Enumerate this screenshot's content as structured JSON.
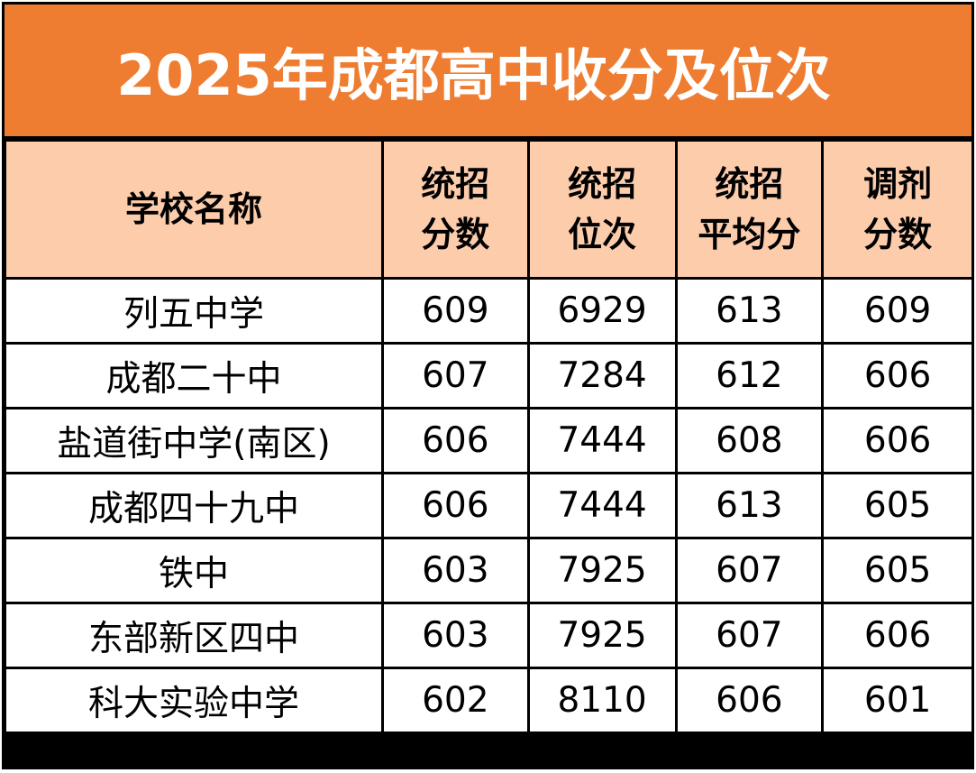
{
  "title": "2025年成都高中收分及位次",
  "columns": [
    {
      "lines": [
        "学校名称"
      ]
    },
    {
      "lines": [
        "统招",
        "分数"
      ]
    },
    {
      "lines": [
        "统招",
        "位次"
      ]
    },
    {
      "lines": [
        "统招",
        "平均分"
      ]
    },
    {
      "lines": [
        "调剂",
        "分数"
      ]
    }
  ],
  "rows": [
    {
      "school": "列五中学",
      "score": "609",
      "rank": "6929",
      "avg": "613",
      "adjust": "609"
    },
    {
      "school": "成都二十中",
      "score": "607",
      "rank": "7284",
      "avg": "612",
      "adjust": "606"
    },
    {
      "school": "盐道街中学(南区)",
      "score": "606",
      "rank": "7444",
      "avg": "608",
      "adjust": "606"
    },
    {
      "school": "成都四十九中",
      "score": "606",
      "rank": "7444",
      "avg": "613",
      "adjust": "605"
    },
    {
      "school": "铁中",
      "score": "603",
      "rank": "7925",
      "avg": "607",
      "adjust": "605"
    },
    {
      "school": "东部新区四中",
      "score": "603",
      "rank": "7925",
      "avg": "607",
      "adjust": "606"
    },
    {
      "school": "科大实验中学",
      "score": "602",
      "rank": "8110",
      "avg": "606",
      "adjust": "601"
    }
  ],
  "colors": {
    "title_bg": "#ef7d31",
    "title_text": "#ffffff",
    "header_bg": "#fcccab",
    "border": "#000000",
    "cell_bg": "#ffffff"
  }
}
